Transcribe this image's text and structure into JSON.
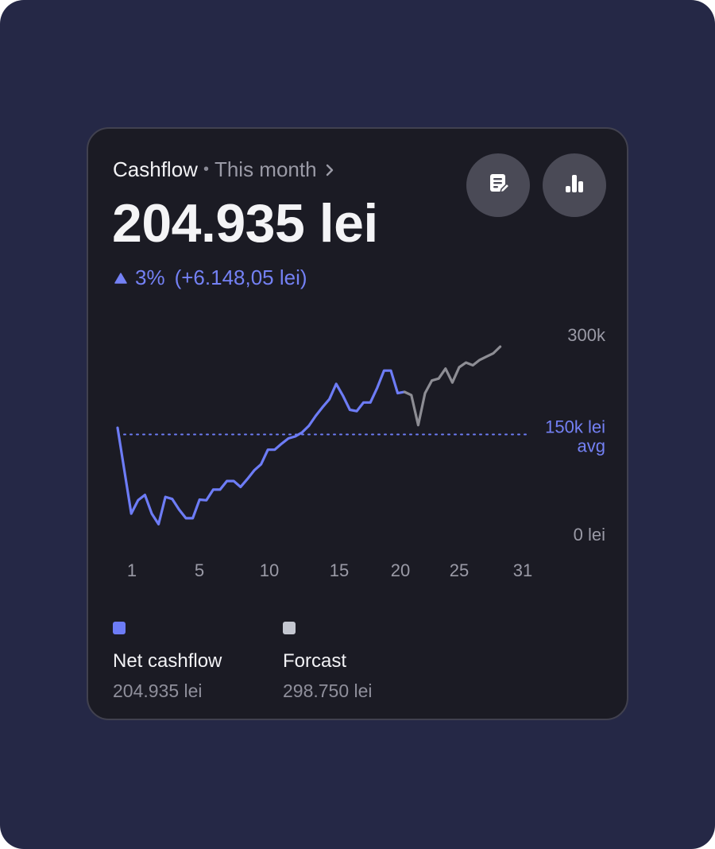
{
  "header": {
    "title": "Cashflow",
    "separator": "•",
    "period": "This month",
    "chevron_icon": "chevron-right-icon"
  },
  "summary": {
    "amount": "204.935 lei",
    "change_percent": "3%",
    "change_amount": "(+6.148,05 lei)",
    "trend_icon": "triangle-up-icon"
  },
  "actions": [
    {
      "icon": "report-icon"
    },
    {
      "icon": "bar-chart-icon"
    }
  ],
  "colors": {
    "background": "#252846",
    "card": "#1b1b24",
    "net_cashflow": "#6d7cf6",
    "forecast": "#8d8d94",
    "forecast_swatch": "#c4c7d0",
    "accent_text": "#7481f5"
  },
  "chart_data": {
    "type": "line",
    "x_ticks": [
      "1",
      "5",
      "10",
      "15",
      "20",
      "25",
      "31"
    ],
    "y_ticks": [
      "300k",
      "0 lei"
    ],
    "ylim": [
      0,
      300000
    ],
    "xlim": [
      1,
      31
    ],
    "average": {
      "value": 150000,
      "label_line1": "150k lei",
      "label_line2": "avg"
    },
    "series": [
      {
        "name": "Net cashflow",
        "color": "#6d7cf6",
        "points": [
          [
            1,
            160000
          ],
          [
            2,
            31000
          ],
          [
            2.5,
            51000
          ],
          [
            3,
            59000
          ],
          [
            3.5,
            31000
          ],
          [
            4,
            15000
          ],
          [
            4.5,
            56000
          ],
          [
            5,
            53000
          ],
          [
            5.5,
            37000
          ],
          [
            6,
            24000
          ],
          [
            6.5,
            24000
          ],
          [
            7,
            52000
          ],
          [
            7.5,
            51000
          ],
          [
            8,
            67000
          ],
          [
            8.5,
            67000
          ],
          [
            9,
            80000
          ],
          [
            9.5,
            80000
          ],
          [
            10,
            71000
          ],
          [
            10.5,
            83000
          ],
          [
            11,
            96000
          ],
          [
            11.5,
            105000
          ],
          [
            12,
            127000
          ],
          [
            12.5,
            127000
          ],
          [
            13,
            136000
          ],
          [
            13.5,
            144000
          ],
          [
            14,
            147000
          ],
          [
            14.5,
            153000
          ],
          [
            15,
            163000
          ],
          [
            15.5,
            178000
          ],
          [
            16,
            191000
          ],
          [
            16.5,
            203000
          ],
          [
            17,
            226000
          ],
          [
            17.5,
            208000
          ],
          [
            18,
            187000
          ],
          [
            18.5,
            185000
          ],
          [
            19,
            198000
          ],
          [
            19.5,
            198000
          ],
          [
            20,
            220000
          ],
          [
            20.5,
            246000
          ],
          [
            21,
            246000
          ],
          [
            21.5,
            212000
          ],
          [
            22,
            214000
          ]
        ]
      },
      {
        "name": "Forcast",
        "color": "#8d8d94",
        "points": [
          [
            22,
            214000
          ],
          [
            22.5,
            209000
          ],
          [
            23,
            164000
          ],
          [
            23.5,
            212000
          ],
          [
            24,
            231000
          ],
          [
            24.5,
            234000
          ],
          [
            25,
            249000
          ],
          [
            25.5,
            228000
          ],
          [
            26,
            251000
          ],
          [
            26.5,
            258000
          ],
          [
            27,
            254000
          ],
          [
            27.5,
            262000
          ],
          [
            28,
            267000
          ],
          [
            28.5,
            272000
          ],
          [
            29,
            282000
          ]
        ]
      }
    ]
  },
  "legend": [
    {
      "label": "Net cashflow",
      "value": "204.935 lei",
      "color": "#6d7cf6"
    },
    {
      "label": "Forcast",
      "value": "298.750 lei",
      "color": "#c4c7d0"
    }
  ]
}
